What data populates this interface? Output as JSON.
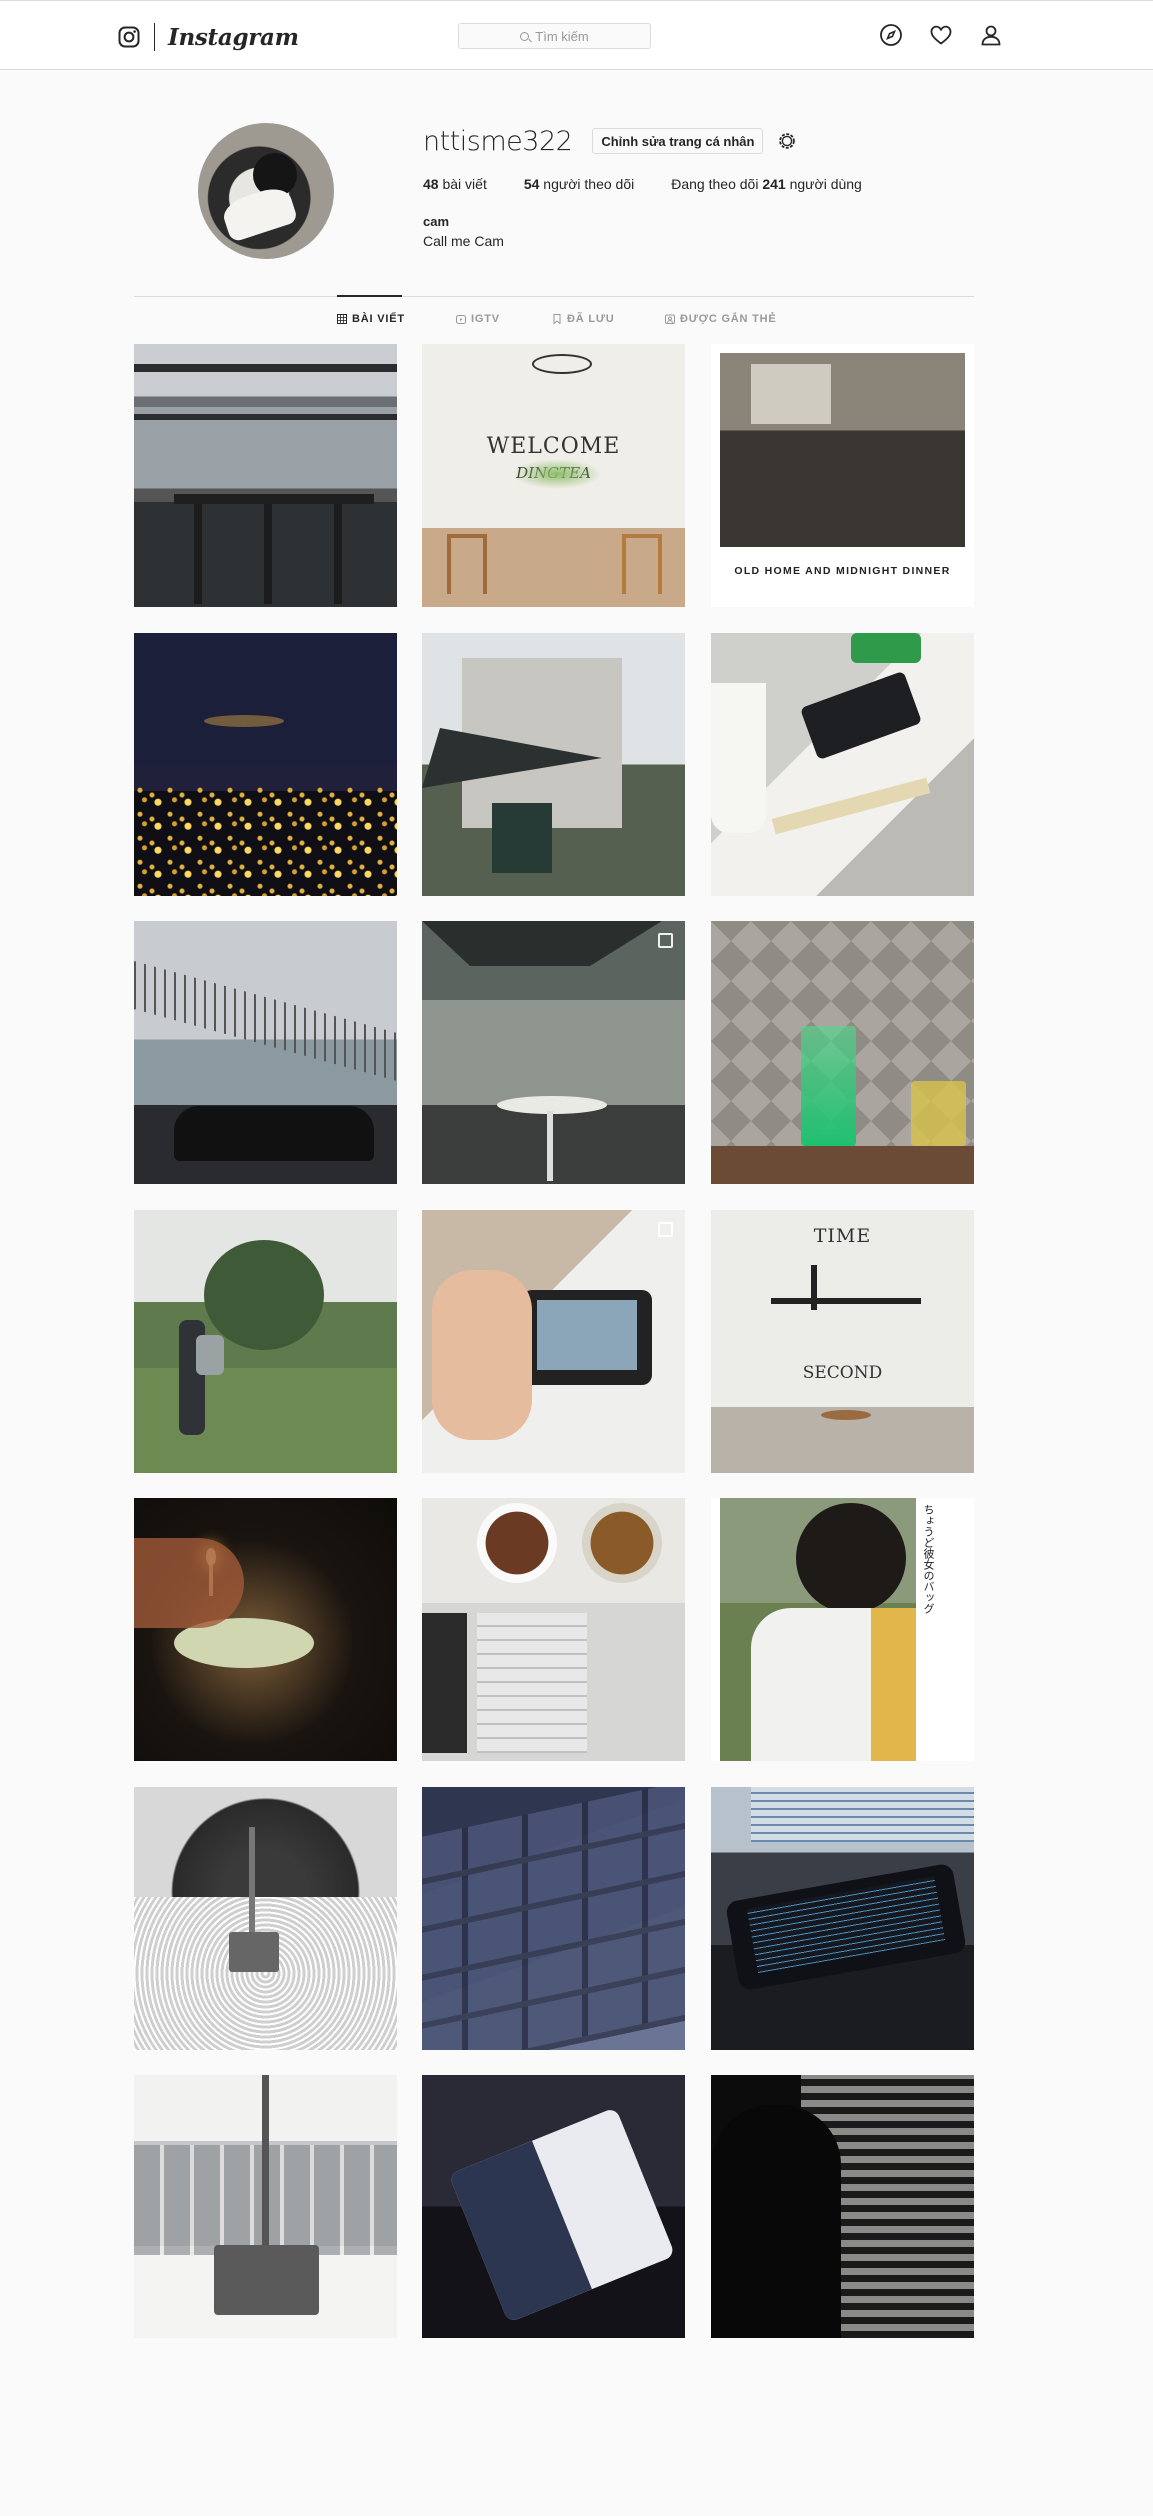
{
  "header": {
    "brand": "Instagram",
    "search_placeholder": "Tìm kiếm",
    "icons": [
      "instagram-glyph-icon",
      "compass-icon",
      "heart-icon",
      "person-icon"
    ]
  },
  "profile": {
    "username": "nttisme322",
    "edit_label": "Chỉnh sửa trang cá nhân",
    "stats": {
      "posts_count": "48",
      "posts_label": "bài viết",
      "followers_count": "54",
      "followers_label": "người theo dõi",
      "following_prefix": "Đang theo dõi",
      "following_count": "241",
      "following_label": "người dùng"
    },
    "bio_name": "cam",
    "bio_text": "Call me Cam"
  },
  "tabs": [
    {
      "label": "BÀI VIẾT",
      "icon": "grid-icon",
      "active": true
    },
    {
      "label": "IGTV",
      "icon": "igtv-icon",
      "active": false
    },
    {
      "label": "ĐÃ LƯU",
      "icon": "bookmark-icon",
      "active": false
    },
    {
      "label": "ĐƯỢC GẮN THẺ",
      "icon": "tag-icon",
      "active": false
    }
  ],
  "posts": [
    {
      "name": "cafe-window-bar-stools",
      "multi": false
    },
    {
      "name": "welcome-dingtea-wall",
      "multi": false,
      "text": "WELCOME",
      "subtext": "DINGTEA"
    },
    {
      "name": "old-home-midnight-dinner",
      "multi": false,
      "caption": "OLD HOME AND MIDNIGHT DINNER"
    },
    {
      "name": "night-city-skyline",
      "multi": false
    },
    {
      "name": "building-umbrellas",
      "multi": false
    },
    {
      "name": "phone-on-desk-ruler",
      "multi": false
    },
    {
      "name": "pedestrian-bridge-car",
      "multi": false
    },
    {
      "name": "cafe-terrace-people",
      "multi": true
    },
    {
      "name": "green-drink-glass",
      "multi": false
    },
    {
      "name": "man-walking-grass",
      "multi": false
    },
    {
      "name": "phone-photo-hands",
      "multi": true
    },
    {
      "name": "time-spent-dingtea-wall",
      "multi": false,
      "text": "TIME",
      "subtext": "SECOND"
    },
    {
      "name": "birthday-candle-cake",
      "multi": false
    },
    {
      "name": "laptop-coffee-flatlay",
      "multi": false
    },
    {
      "name": "girl-backpack-japanese",
      "multi": false,
      "vertical_text": "ちょうど彼女のバッグ"
    },
    {
      "name": "hammer-figure-snow",
      "multi": false
    },
    {
      "name": "keyboard-closeup",
      "multi": false
    },
    {
      "name": "laptop-phone-code",
      "multi": false
    },
    {
      "name": "hammer-figure-keyboard",
      "multi": false
    },
    {
      "name": "phone-dark-screen",
      "multi": false
    },
    {
      "name": "silhouette-blinds",
      "multi": false
    }
  ]
}
